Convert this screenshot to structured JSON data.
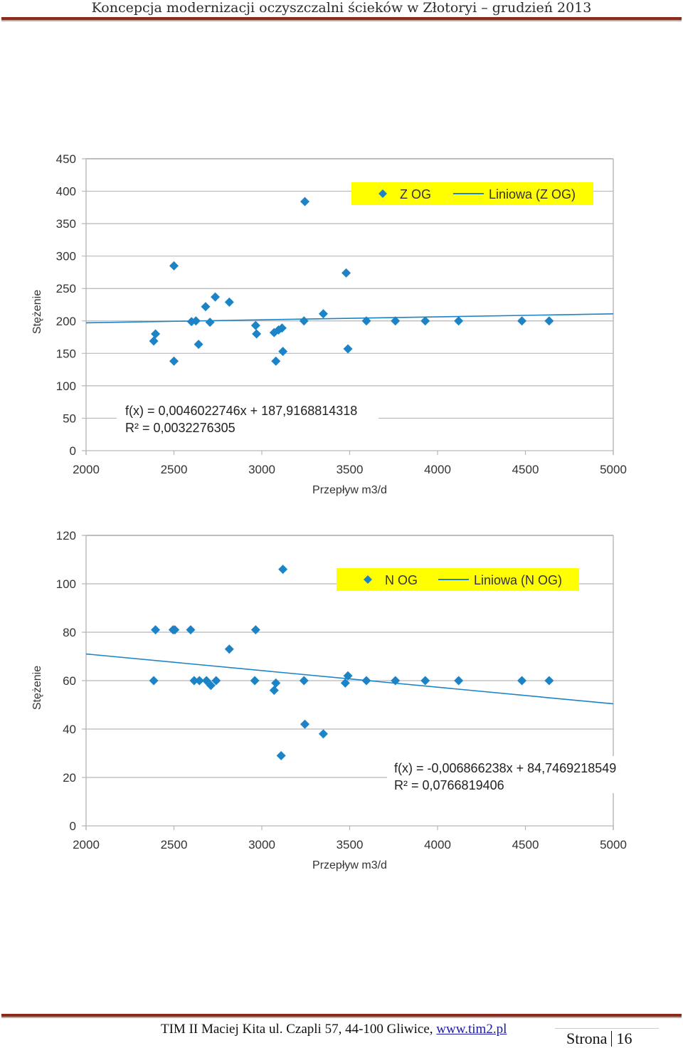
{
  "header": {
    "title": "Koncepcja modernizacji oczyszczalni ścieków w Złotoryi – grudzień 2013"
  },
  "footer": {
    "address": "TIM II Maciej Kita ul. Czapli 57, 44-100 Gliwice, ",
    "link": "www.tim2.pl",
    "page_label": "Strona",
    "page_number": "16"
  },
  "colors": {
    "marker": "#1c84c6",
    "trend": "#1c84c6",
    "legend_bg": "#ffff00",
    "grid": "#b7b7b7",
    "rule": "#8c2a1d"
  },
  "chart_data": [
    {
      "type": "scatter",
      "title": "",
      "xlabel": "Przepływ m3/d",
      "ylabel": "Stężenie",
      "xlim": [
        2000,
        5000
      ],
      "ylim": [
        0,
        450
      ],
      "xticks": [
        2000,
        2500,
        3000,
        3500,
        4000,
        4500,
        5000
      ],
      "yticks": [
        0,
        50,
        100,
        150,
        200,
        250,
        300,
        350,
        400,
        450
      ],
      "grid": true,
      "legend_position": "top-right",
      "series": [
        {
          "name": "Z OG",
          "points": [
            [
              2385,
              169
            ],
            [
              2395,
              180
            ],
            [
              2500,
              138
            ],
            [
              2500,
              285
            ],
            [
              2600,
              199
            ],
            [
              2625,
              200
            ],
            [
              2640,
              164
            ],
            [
              2680,
              222
            ],
            [
              2705,
              198
            ],
            [
              2735,
              237
            ],
            [
              2815,
              229
            ],
            [
              2965,
              193
            ],
            [
              2970,
              180
            ],
            [
              3070,
              182
            ],
            [
              3080,
              138
            ],
            [
              3095,
              186
            ],
            [
              3115,
              189
            ],
            [
              3120,
              153
            ],
            [
              3240,
              200
            ],
            [
              3245,
              384
            ],
            [
              3350,
              211
            ],
            [
              3480,
              274
            ],
            [
              3490,
              157
            ],
            [
              3595,
              200
            ],
            [
              3760,
              200
            ],
            [
              3930,
              200
            ],
            [
              4120,
              200
            ],
            [
              4480,
              200
            ],
            [
              4635,
              200
            ]
          ]
        }
      ],
      "trendline": {
        "name": "Liniowa (Z OG)",
        "slope": 0.0046022746,
        "intercept": 187.9168814318,
        "equation": "f(x) = 0,0046022746x + 187,9168814318",
        "r2": "R² = 0,0032276305"
      }
    },
    {
      "type": "scatter",
      "title": "",
      "xlabel": "Przepływ m3/d",
      "ylabel": "Stężenie",
      "xlim": [
        2000,
        5000
      ],
      "ylim": [
        0,
        120
      ],
      "xticks": [
        2000,
        2500,
        3000,
        3500,
        4000,
        4500,
        5000
      ],
      "yticks": [
        0,
        20,
        40,
        60,
        80,
        100,
        120
      ],
      "grid": true,
      "legend_position": "top-right",
      "series": [
        {
          "name": "N OG",
          "points": [
            [
              2385,
              60
            ],
            [
              2395,
              81
            ],
            [
              2495,
              81
            ],
            [
              2505,
              81
            ],
            [
              2595,
              81
            ],
            [
              2615,
              60
            ],
            [
              2645,
              60
            ],
            [
              2685,
              60
            ],
            [
              2710,
              58
            ],
            [
              2740,
              60
            ],
            [
              2815,
              73
            ],
            [
              2960,
              60
            ],
            [
              2965,
              81
            ],
            [
              3070,
              56
            ],
            [
              3080,
              59
            ],
            [
              3110,
              29
            ],
            [
              3120,
              106
            ],
            [
              3240,
              60
            ],
            [
              3245,
              42
            ],
            [
              3350,
              38
            ],
            [
              3475,
              59
            ],
            [
              3490,
              62
            ],
            [
              3595,
              60
            ],
            [
              3760,
              60
            ],
            [
              3930,
              60
            ],
            [
              4120,
              60
            ],
            [
              4480,
              60
            ],
            [
              4635,
              60
            ]
          ]
        }
      ],
      "trendline": {
        "name": "Liniowa (N OG)",
        "slope": -0.006866238,
        "intercept": 84.7469218549,
        "equation": "f(x) = -0,006866238x + 84,7469218549",
        "r2": "R² = 0,0766819406"
      }
    }
  ]
}
